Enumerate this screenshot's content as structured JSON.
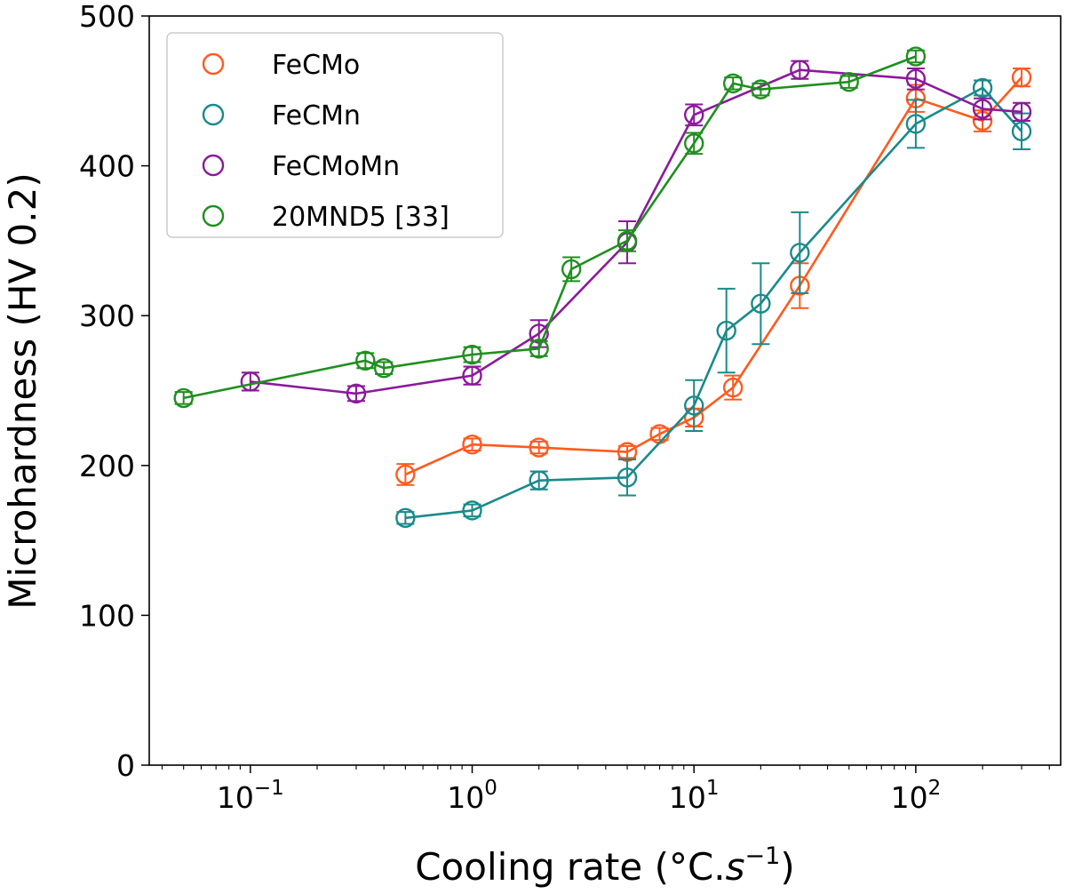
{
  "chart_data": {
    "type": "line",
    "xscale": "log",
    "xlim": [
      0.035,
      450
    ],
    "ylim": [
      0,
      500
    ],
    "xlabel_prefix": "Cooling rate (°C.",
    "xlabel_var": "s",
    "xlabel_exp": "−1",
    "xlabel_suffix": ")",
    "ylabel": "Microhardness (HV 0.2)",
    "x_ticks": [
      {
        "value": 0.1,
        "base": "10",
        "exp": "−1"
      },
      {
        "value": 1,
        "base": "10",
        "exp": "0"
      },
      {
        "value": 10,
        "base": "10",
        "exp": "1"
      },
      {
        "value": 100,
        "base": "10",
        "exp": "2"
      }
    ],
    "y_ticks": [
      0,
      100,
      200,
      300,
      400,
      500
    ],
    "legend_position": "top-left",
    "series": [
      {
        "name": "FeCMo",
        "color": "#ff5a1f",
        "points": [
          {
            "x": 0.5,
            "y": 194,
            "err": 7
          },
          {
            "x": 1,
            "y": 214,
            "err": 4
          },
          {
            "x": 2,
            "y": 212,
            "err": 4
          },
          {
            "x": 5,
            "y": 209,
            "err": 4
          },
          {
            "x": 7,
            "y": 221,
            "err": 4
          },
          {
            "x": 10,
            "y": 232,
            "err": 6
          },
          {
            "x": 15,
            "y": 252,
            "err": 8
          },
          {
            "x": 30,
            "y": 320,
            "err": 15
          },
          {
            "x": 100,
            "y": 445,
            "err": 9
          },
          {
            "x": 200,
            "y": 430,
            "err": 7
          },
          {
            "x": 300,
            "y": 459,
            "err": 6
          }
        ]
      },
      {
        "name": "FeCMn",
        "color": "#1a8a8a",
        "points": [
          {
            "x": 0.5,
            "y": 165,
            "err": 4
          },
          {
            "x": 1,
            "y": 170,
            "err": 4
          },
          {
            "x": 2,
            "y": 190,
            "err": 6
          },
          {
            "x": 5,
            "y": 192,
            "err": 12
          },
          {
            "x": 10,
            "y": 240,
            "err": 17
          },
          {
            "x": 14,
            "y": 290,
            "err": 28
          },
          {
            "x": 20,
            "y": 308,
            "err": 27
          },
          {
            "x": 30,
            "y": 342,
            "err": 27
          },
          {
            "x": 100,
            "y": 428,
            "err": 16
          },
          {
            "x": 200,
            "y": 452,
            "err": 5
          },
          {
            "x": 300,
            "y": 423,
            "err": 12
          }
        ]
      },
      {
        "name": "FeCMoMn",
        "color": "#8b1a9b",
        "points": [
          {
            "x": 0.1,
            "y": 256,
            "err": 6
          },
          {
            "x": 0.3,
            "y": 248,
            "err": 5
          },
          {
            "x": 1,
            "y": 260,
            "err": 6
          },
          {
            "x": 2,
            "y": 288,
            "err": 9
          },
          {
            "x": 5,
            "y": 349,
            "err": 14
          },
          {
            "x": 10,
            "y": 434,
            "err": 7
          },
          {
            "x": 30,
            "y": 464,
            "err": 6
          },
          {
            "x": 100,
            "y": 458,
            "err": 7
          },
          {
            "x": 200,
            "y": 438,
            "err": 7
          },
          {
            "x": 300,
            "y": 436,
            "err": 6
          }
        ]
      },
      {
        "name": "20MND5 [33]",
        "color": "#1f8f1f",
        "points": [
          {
            "x": 0.05,
            "y": 245,
            "err": 4
          },
          {
            "x": 0.33,
            "y": 270,
            "err": 5
          },
          {
            "x": 0.4,
            "y": 265,
            "err": 4
          },
          {
            "x": 1,
            "y": 274,
            "err": 5
          },
          {
            "x": 2,
            "y": 278,
            "err": 5
          },
          {
            "x": 2.8,
            "y": 331,
            "err": 8
          },
          {
            "x": 5,
            "y": 350,
            "err": 7
          },
          {
            "x": 10,
            "y": 415,
            "err": 7
          },
          {
            "x": 15,
            "y": 455,
            "err": 4
          },
          {
            "x": 20,
            "y": 451,
            "err": 4
          },
          {
            "x": 50,
            "y": 456,
            "err": 4
          },
          {
            "x": 100,
            "y": 473,
            "err": 4
          }
        ]
      }
    ]
  }
}
